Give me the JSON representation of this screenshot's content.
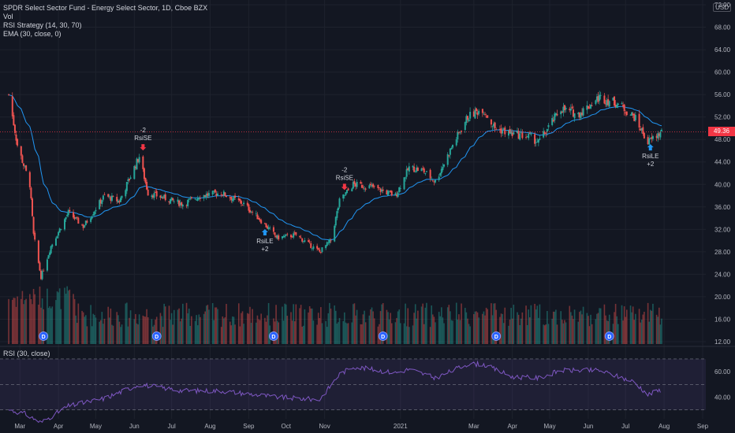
{
  "chart_data": {
    "type": "candlestick",
    "title": "SPDR Select Sector Fund - Energy Select Sector, 1D, Cboe BZX",
    "legend_lines": [
      "Vol",
      "RSI Strategy (14, 30, 70)",
      "EMA (30, close, 0)"
    ],
    "currency": "USD",
    "last_price": "49.36",
    "price_axis_ticks": [
      "72.00",
      "68.00",
      "64.00",
      "60.00",
      "56.00",
      "52.00",
      "48.00",
      "44.00",
      "40.00",
      "36.00",
      "32.00",
      "28.00",
      "24.00",
      "20.00",
      "16.00",
      "12.00"
    ],
    "price_axis_range": [
      12,
      72
    ],
    "time_axis_labels": [
      "Mar",
      "Apr",
      "May",
      "Jun",
      "Jul",
      "Aug",
      "Sep",
      "Oct",
      "Nov",
      "2021",
      "Mar",
      "Apr",
      "May",
      "Jun",
      "Jul",
      "Aug",
      "Sep"
    ],
    "price_path_anchors": [
      {
        "date": "Feb 21",
        "close": 56.0
      },
      {
        "date": "Feb 28",
        "close": 47.0
      },
      {
        "date": "Mar 09",
        "close": 40.0
      },
      {
        "date": "Mar 12",
        "close": 31.0
      },
      {
        "date": "Mar 18",
        "close": 23.5
      },
      {
        "date": "Mar 26",
        "close": 29.0
      },
      {
        "date": "Apr 09",
        "close": 35.0
      },
      {
        "date": "Apr 21",
        "close": 32.5
      },
      {
        "date": "May 08",
        "close": 38.0
      },
      {
        "date": "May 20",
        "close": 37.0
      },
      {
        "date": "Jun 05",
        "close": 45.0
      },
      {
        "date": "Jun 12",
        "close": 38.5
      },
      {
        "date": "Jun 26",
        "close": 37.5
      },
      {
        "date": "Jul 10",
        "close": 36.5
      },
      {
        "date": "Jul 24",
        "close": 38.0
      },
      {
        "date": "Aug 10",
        "close": 38.5
      },
      {
        "date": "Aug 28",
        "close": 36.5
      },
      {
        "date": "Sep 09",
        "close": 34.0
      },
      {
        "date": "Sep 24",
        "close": 30.5
      },
      {
        "date": "Oct 09",
        "close": 31.0
      },
      {
        "date": "Oct 28",
        "close": 28.0
      },
      {
        "date": "Nov 06",
        "close": 30.0
      },
      {
        "date": "Nov 13",
        "close": 37.0
      },
      {
        "date": "Nov 24",
        "close": 40.0
      },
      {
        "date": "Dec 10",
        "close": 39.5
      },
      {
        "date": "Dec 28",
        "close": 38.0
      },
      {
        "date": "Jan 08",
        "close": 43.0
      },
      {
        "date": "Jan 19",
        "close": 42.5
      },
      {
        "date": "Jan 29",
        "close": 40.5
      },
      {
        "date": "Feb 12",
        "close": 47.0
      },
      {
        "date": "Feb 24",
        "close": 52.0
      },
      {
        "date": "Mar 08",
        "close": 53.5
      },
      {
        "date": "Mar 18",
        "close": 50.0
      },
      {
        "date": "Apr 01",
        "close": 49.0
      },
      {
        "date": "Apr 15",
        "close": 48.5
      },
      {
        "date": "Apr 22",
        "close": 47.5
      },
      {
        "date": "May 10",
        "close": 53.5
      },
      {
        "date": "May 24",
        "close": 52.5
      },
      {
        "date": "Jun 10",
        "close": 55.5
      },
      {
        "date": "Jun 24",
        "close": 54.5
      },
      {
        "date": "Jul 08",
        "close": 52.0
      },
      {
        "date": "Jul 19",
        "close": 47.5
      },
      {
        "date": "Jul 30",
        "close": 49.36
      }
    ],
    "ema_label": "EMA (30, close, 0)",
    "strategy_signals": [
      {
        "date": "Jun 08",
        "label": "RsiSE",
        "qty": "-2",
        "dir": "short"
      },
      {
        "date": "Sep 14",
        "label": "RsiLE",
        "qty": "+2",
        "dir": "long"
      },
      {
        "date": "Nov 17",
        "label": "RsiSE",
        "qty": "-2",
        "dir": "short"
      },
      {
        "date": "Jul 21",
        "label": "RsiLE",
        "qty": "+2",
        "dir": "long"
      }
    ],
    "dividend_marker": "D",
    "dividend_dates": [
      "Mar 20",
      "Jun 19",
      "Sep 21",
      "Dec 18",
      "Mar 19",
      "Jun 18"
    ],
    "rsi": {
      "title": "RSI (30, close)",
      "ticks": [
        "60.00",
        "40.00"
      ],
      "range": [
        23,
        78
      ],
      "bands": [
        30,
        50,
        70
      ],
      "path_anchors": [
        {
          "date": "Feb 21",
          "value": 30
        },
        {
          "date": "Mar 05",
          "value": 27
        },
        {
          "date": "Mar 18",
          "value": 20
        },
        {
          "date": "Apr 09",
          "value": 33
        },
        {
          "date": "May 08",
          "value": 39
        },
        {
          "date": "Jun 05",
          "value": 50
        },
        {
          "date": "Jul 10",
          "value": 45
        },
        {
          "date": "Aug 10",
          "value": 45
        },
        {
          "date": "Sep 24",
          "value": 40
        },
        {
          "date": "Oct 28",
          "value": 38
        },
        {
          "date": "Nov 13",
          "value": 58
        },
        {
          "date": "Nov 24",
          "value": 64
        },
        {
          "date": "Dec 28",
          "value": 59
        },
        {
          "date": "Jan 08",
          "value": 62
        },
        {
          "date": "Jan 29",
          "value": 55
        },
        {
          "date": "Feb 24",
          "value": 66
        },
        {
          "date": "Mar 08",
          "value": 66
        },
        {
          "date": "Apr 01",
          "value": 56
        },
        {
          "date": "Apr 22",
          "value": 55
        },
        {
          "date": "May 10",
          "value": 61
        },
        {
          "date": "Jun 10",
          "value": 61
        },
        {
          "date": "Jul 08",
          "value": 52
        },
        {
          "date": "Jul 19",
          "value": 42
        },
        {
          "date": "Jul 30",
          "value": 46
        }
      ]
    },
    "colors": {
      "up": "#26a69a",
      "down": "#ef5350",
      "ema": "#2196f3",
      "rsi": "#7e57c2",
      "last_price": "#f23645",
      "signal_up": "#2196f3",
      "signal_down": "#f23645"
    },
    "grid": true
  }
}
